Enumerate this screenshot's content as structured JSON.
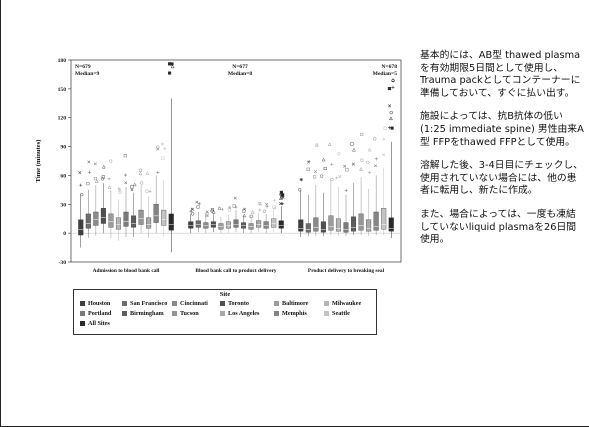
{
  "chart_data": {
    "type": "box",
    "ylabel": "Time (minutes)",
    "ylim": [
      -30,
      180
    ],
    "yticks": [
      -30,
      0,
      30,
      60,
      90,
      120,
      150,
      180
    ],
    "panels": [
      {
        "label": "Admission to blood bank call",
        "n_text": "N=679",
        "median_text": "Median=9"
      },
      {
        "label": "Blood bank call to product delivery",
        "n_text": "N=677",
        "median_text": "Median=8"
      },
      {
        "label": "Product delivery to breaking seal",
        "n_text": "N=678",
        "median_text": "Median=5"
      }
    ],
    "legend_title": "Site",
    "sites": [
      {
        "name": "Houston",
        "color": "#3f3f3f"
      },
      {
        "name": "San Francisco",
        "color": "#6e6e6e"
      },
      {
        "name": "Cincinnati",
        "color": "#8a8a8a"
      },
      {
        "name": "Toronto",
        "color": "#505050"
      },
      {
        "name": "Baltimore",
        "color": "#9c9c9c"
      },
      {
        "name": "Milwaukee",
        "color": "#b6b6b6"
      },
      {
        "name": "Portland",
        "color": "#7a7a7a"
      },
      {
        "name": "Birmingham",
        "color": "#5c5c5c"
      },
      {
        "name": "Tucson",
        "color": "#969696"
      },
      {
        "name": "Los Angeles",
        "color": "#a8a8a8"
      },
      {
        "name": "Memphis",
        "color": "#858585"
      },
      {
        "name": "Seattle",
        "color": "#c4c4c4"
      },
      {
        "name": "All Sites",
        "color": "#2a2a2a"
      }
    ],
    "series_estimates": [
      [
        {
          "q1": -2,
          "med": 4,
          "q3": 14,
          "lo": -15,
          "hi": 40
        },
        {
          "q1": 5,
          "med": 10,
          "q3": 20,
          "lo": -5,
          "hi": 45
        },
        {
          "q1": 8,
          "med": 14,
          "q3": 22,
          "lo": -3,
          "hi": 50
        },
        {
          "q1": 10,
          "med": 16,
          "q3": 26,
          "lo": 0,
          "hi": 52
        },
        {
          "q1": 6,
          "med": 12,
          "q3": 20,
          "lo": -5,
          "hi": 45
        },
        {
          "q1": 4,
          "med": 9,
          "q3": 16,
          "lo": -8,
          "hi": 35
        },
        {
          "q1": 7,
          "med": 12,
          "q3": 22,
          "lo": -4,
          "hi": 48
        },
        {
          "q1": 6,
          "med": 10,
          "q3": 18,
          "lo": -4,
          "hi": 42
        },
        {
          "q1": 9,
          "med": 15,
          "q3": 24,
          "lo": 0,
          "hi": 50
        },
        {
          "q1": 5,
          "med": 9,
          "q3": 16,
          "lo": -5,
          "hi": 38
        },
        {
          "q1": 11,
          "med": 18,
          "q3": 30,
          "lo": 0,
          "hi": 60
        },
        {
          "q1": 8,
          "med": 14,
          "q3": 24,
          "lo": -4,
          "hi": 55
        },
        {
          "q1": 3,
          "med": 9,
          "q3": 20,
          "lo": -20,
          "hi": 140
        }
      ],
      [
        {
          "q1": 5,
          "med": 8,
          "q3": 12,
          "lo": 0,
          "hi": 20
        },
        {
          "q1": 6,
          "med": 9,
          "q3": 13,
          "lo": 1,
          "hi": 22
        },
        {
          "q1": 5,
          "med": 8,
          "q3": 11,
          "lo": 0,
          "hi": 18
        },
        {
          "q1": 6,
          "med": 9,
          "q3": 12,
          "lo": 1,
          "hi": 20
        },
        {
          "q1": 4,
          "med": 7,
          "q3": 10,
          "lo": 0,
          "hi": 17
        },
        {
          "q1": 5,
          "med": 8,
          "q3": 12,
          "lo": 0,
          "hi": 19
        },
        {
          "q1": 6,
          "med": 9,
          "q3": 14,
          "lo": 1,
          "hi": 24
        },
        {
          "q1": 5,
          "med": 8,
          "q3": 11,
          "lo": 0,
          "hi": 18
        },
        {
          "q1": 4,
          "med": 7,
          "q3": 10,
          "lo": 0,
          "hi": 16
        },
        {
          "q1": 6,
          "med": 9,
          "q3": 13,
          "lo": 1,
          "hi": 21
        },
        {
          "q1": 5,
          "med": 8,
          "q3": 12,
          "lo": 0,
          "hi": 20
        },
        {
          "q1": 6,
          "med": 10,
          "q3": 15,
          "lo": 1,
          "hi": 25
        },
        {
          "q1": 5,
          "med": 8,
          "q3": 13,
          "lo": 0,
          "hi": 28
        }
      ],
      [
        {
          "q1": 2,
          "med": 5,
          "q3": 14,
          "lo": -4,
          "hi": 45
        },
        {
          "q1": 1,
          "med": 4,
          "q3": 10,
          "lo": -3,
          "hi": 40
        },
        {
          "q1": 2,
          "med": 6,
          "q3": 16,
          "lo": -3,
          "hi": 50
        },
        {
          "q1": 1,
          "med": 4,
          "q3": 12,
          "lo": -3,
          "hi": 42
        },
        {
          "q1": 3,
          "med": 7,
          "q3": 18,
          "lo": -2,
          "hi": 55
        },
        {
          "q1": 2,
          "med": 5,
          "q3": 15,
          "lo": -3,
          "hi": 48
        },
        {
          "q1": 1,
          "med": 4,
          "q3": 11,
          "lo": -3,
          "hi": 40
        },
        {
          "q1": 2,
          "med": 6,
          "q3": 17,
          "lo": -2,
          "hi": 52
        },
        {
          "q1": 3,
          "med": 8,
          "q3": 20,
          "lo": -2,
          "hi": 58
        },
        {
          "q1": 2,
          "med": 5,
          "q3": 14,
          "lo": -3,
          "hi": 46
        },
        {
          "q1": 3,
          "med": 7,
          "q3": 22,
          "lo": -2,
          "hi": 60
        },
        {
          "q1": 4,
          "med": 9,
          "q3": 26,
          "lo": -2,
          "hi": 68
        },
        {
          "q1": 2,
          "med": 5,
          "q3": 16,
          "lo": -5,
          "hi": 95
        }
      ]
    ]
  },
  "notes": [
    "基本的には、AB型 thawed plasmaを有効期限5日間として使用し、Trauma packとしてコンテーナーに準備しておいて、すぐに払い出す。",
    "施設によっては、抗B抗体の低い(1:25 immediate spine) 男性由来A型 FFPをthawed FFPとして使用。",
    "溶解した後、3-4日目にチェックし、使用されていない場合には、他の患者に転用し、新たに作成。",
    "また、場合によっては、一度も凍結していないliquid plasmaを26日間使用。"
  ]
}
